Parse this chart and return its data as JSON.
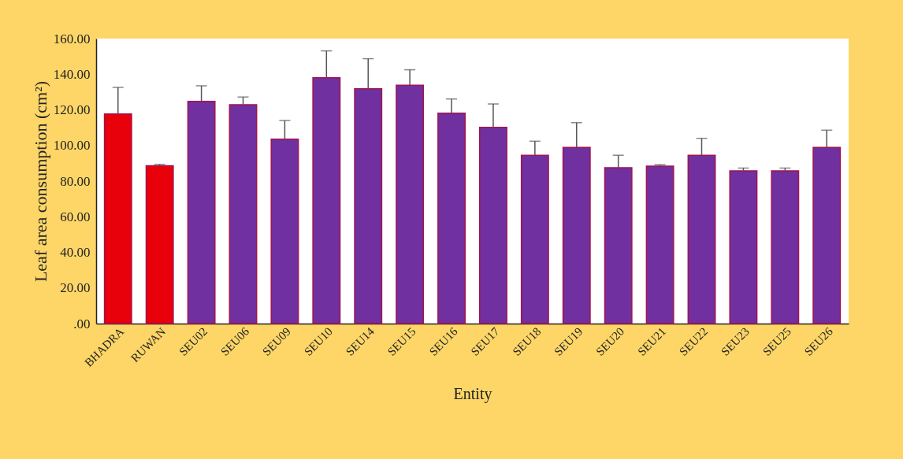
{
  "chart_data": {
    "type": "bar",
    "xlabel": "Entity",
    "ylabel": "Leaf area consumption  (cm²)",
    "categories": [
      "BHADRA",
      "RUWAN",
      "SEU02",
      "SEU06",
      "SEU09",
      "SEU10",
      "SEU14",
      "SEU15",
      "SEU16",
      "SEU17",
      "SEU18",
      "SEU19",
      "SEU20",
      "SEU21",
      "SEU22",
      "SEU23",
      "SEU25",
      "SEU26"
    ],
    "values": [
      117.7,
      88.6,
      124.8,
      122.9,
      103.5,
      138.0,
      131.8,
      133.8,
      118.1,
      110.2,
      94.5,
      98.9,
      87.5,
      88.4,
      94.5,
      85.8,
      85.8,
      98.9
    ],
    "errors": [
      [
        117.7,
        132.6
      ],
      [
        88.6,
        89.4
      ],
      [
        124.8,
        133.5
      ],
      [
        122.9,
        127.2
      ],
      [
        103.5,
        114.0
      ],
      [
        138.0,
        153.1
      ],
      [
        131.8,
        148.7
      ],
      [
        133.8,
        142.5
      ],
      [
        118.1,
        126.1
      ],
      [
        110.2,
        123.3
      ],
      [
        94.5,
        102.4
      ],
      [
        98.9,
        112.8
      ],
      [
        87.5,
        94.5
      ],
      [
        88.4,
        89.2
      ],
      [
        94.5,
        104.0
      ],
      [
        85.8,
        87.3
      ],
      [
        85.8,
        87.3
      ],
      [
        98.9,
        108.6
      ]
    ],
    "colors": [
      "#e8000b",
      "#e8000b",
      "#7030a0",
      "#7030a0",
      "#7030a0",
      "#7030a0",
      "#7030a0",
      "#7030a0",
      "#7030a0",
      "#7030a0",
      "#7030a0",
      "#7030a0",
      "#7030a0",
      "#7030a0",
      "#7030a0",
      "#7030a0",
      "#7030a0",
      "#7030a0"
    ],
    "ylim": [
      0,
      160
    ],
    "yticks": [
      {
        "value": 0,
        "label": ".00"
      },
      {
        "value": 20,
        "label": "20.00"
      },
      {
        "value": 40,
        "label": "40.00"
      },
      {
        "value": 60,
        "label": "60.00"
      },
      {
        "value": 80,
        "label": "80.00"
      },
      {
        "value": 100,
        "label": "100.00"
      },
      {
        "value": 120,
        "label": "120.00"
      },
      {
        "value": 140,
        "label": "140.00"
      },
      {
        "value": 160,
        "label": "160.00"
      }
    ],
    "grid": false,
    "legend": false
  }
}
